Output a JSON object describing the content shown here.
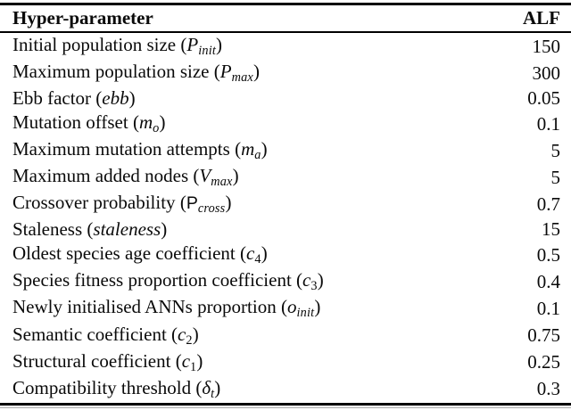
{
  "table": {
    "header": {
      "param": "Hyper-parameter",
      "value": "ALF"
    },
    "rows": [
      {
        "label": "Initial population size",
        "symbol": "P",
        "symbol_upright": false,
        "subscript": "init",
        "subscript_italic": true,
        "value": "150"
      },
      {
        "label": "Maximum population size",
        "symbol": "P",
        "symbol_upright": false,
        "subscript": "max",
        "subscript_italic": true,
        "value": "300"
      },
      {
        "label": "Ebb factor",
        "symbol": "ebb",
        "symbol_upright": false,
        "subscript": "",
        "subscript_italic": false,
        "value": "0.05"
      },
      {
        "label": "Mutation offset",
        "symbol": "m",
        "symbol_upright": false,
        "subscript": "o",
        "subscript_italic": true,
        "value": "0.1"
      },
      {
        "label": "Maximum mutation attempts",
        "symbol": "m",
        "symbol_upright": false,
        "subscript": "a",
        "subscript_italic": true,
        "value": "5"
      },
      {
        "label": "Maximum added nodes",
        "symbol": "V",
        "symbol_upright": false,
        "subscript": "max",
        "subscript_italic": true,
        "value": "5"
      },
      {
        "label": "Crossover probability",
        "symbol": "P",
        "symbol_upright": true,
        "subscript": "cross",
        "subscript_italic": true,
        "value": "0.7"
      },
      {
        "label": "Staleness",
        "symbol": "staleness",
        "symbol_upright": false,
        "subscript": "",
        "subscript_italic": false,
        "value": "15"
      },
      {
        "label": "Oldest species age coefficient",
        "symbol": "c",
        "symbol_upright": false,
        "subscript": "4",
        "subscript_italic": false,
        "value": "0.5"
      },
      {
        "label": "Species fitness proportion coefficient",
        "symbol": "c",
        "symbol_upright": false,
        "subscript": "3",
        "subscript_italic": false,
        "value": "0.4"
      },
      {
        "label": "Newly initialised ANNs proportion",
        "symbol": "o",
        "symbol_upright": false,
        "subscript": "init",
        "subscript_italic": true,
        "value": "0.1"
      },
      {
        "label": "Semantic coefficient",
        "symbol": "c",
        "symbol_upright": false,
        "subscript": "2",
        "subscript_italic": false,
        "value": "0.75"
      },
      {
        "label": "Structural coefficient",
        "symbol": "c",
        "symbol_upright": false,
        "subscript": "1",
        "subscript_italic": false,
        "value": "0.25"
      },
      {
        "label": "Compatibility threshold",
        "symbol": "δ",
        "symbol_upright": false,
        "subscript": "t",
        "subscript_italic": true,
        "value": "0.3"
      }
    ],
    "punctuation": {
      "open_paren": "(",
      "close_paren": ")"
    }
  }
}
